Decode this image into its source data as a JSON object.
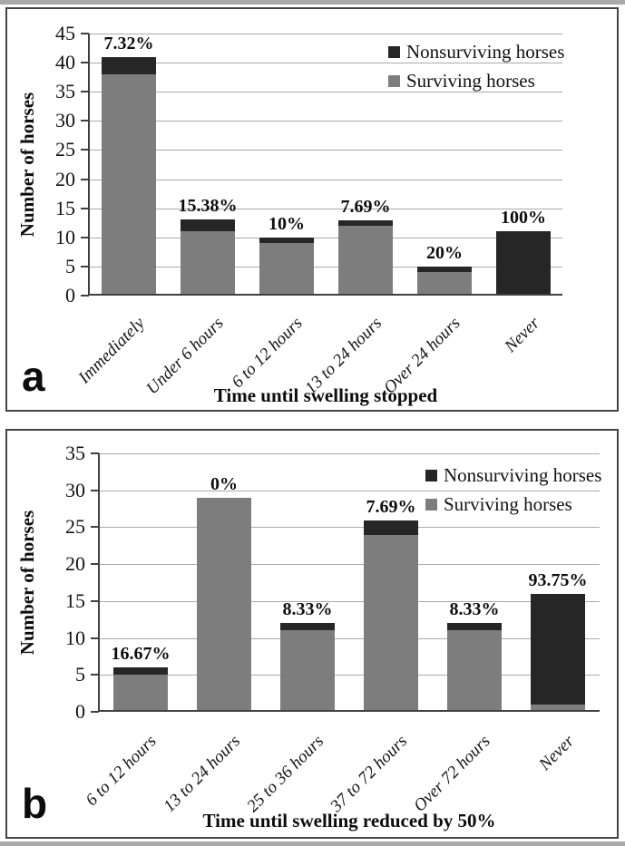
{
  "colors": {
    "surviving_bar": "#7d7d7d",
    "nonsurviving_bar": "#262626",
    "gridline": "#ababab",
    "axis": "#404040",
    "panel_border": "#454545"
  },
  "chart_data": [
    {
      "type": "bar",
      "stacked": true,
      "panel_label": "a",
      "title": "",
      "xlabel": "Time until swelling stopped",
      "ylabel": "Number of horses",
      "ylim": [
        0,
        45
      ],
      "yticks": [
        0,
        5,
        10,
        15,
        20,
        25,
        30,
        35,
        40,
        45
      ],
      "grid": true,
      "legend_position": "top-right",
      "categories": [
        "Immediately",
        "Under 6 hours",
        "6 to 12 hours",
        "13 to 24 hours",
        "Over 24 hours",
        "Never"
      ],
      "series": [
        {
          "name": "Surviving horses",
          "color": "#7d7d7d",
          "values": [
            38,
            11,
            9,
            12,
            4,
            0
          ]
        },
        {
          "name": "Nonsurviving horses",
          "color": "#262626",
          "values": [
            3,
            2,
            1,
            1,
            1,
            11
          ]
        }
      ],
      "totals": [
        41,
        13,
        10,
        13,
        5,
        11
      ],
      "bar_labels": [
        "7.32%",
        "15.38%",
        "10%",
        "7.69%",
        "20%",
        "100%"
      ],
      "legend": [
        {
          "label": "Nonsurviving horses",
          "color": "#262626"
        },
        {
          "label": "Surviving horses",
          "color": "#7d7d7d"
        }
      ]
    },
    {
      "type": "bar",
      "stacked": true,
      "panel_label": "b",
      "title": "",
      "xlabel": "Time until swelling reduced by 50%",
      "ylabel": "Number of horses",
      "ylim": [
        0,
        35
      ],
      "yticks": [
        0,
        5,
        10,
        15,
        20,
        25,
        30,
        35
      ],
      "grid": true,
      "legend_position": "top-right",
      "categories": [
        "6 to 12 hours",
        "13 to 24 hours",
        "25 to 36 hours",
        "37 to 72 hours",
        "Over 72 hours",
        "Never"
      ],
      "series": [
        {
          "name": "Surviving horses",
          "color": "#7d7d7d",
          "values": [
            5,
            29,
            11,
            24,
            11,
            1
          ]
        },
        {
          "name": "Nonsurviving horses",
          "color": "#262626",
          "values": [
            1,
            0,
            1,
            2,
            1,
            15
          ]
        }
      ],
      "totals": [
        6,
        29,
        12,
        26,
        12,
        16
      ],
      "bar_labels": [
        "16.67%",
        "0%",
        "8.33%",
        "7.69%",
        "8.33%",
        "93.75%"
      ],
      "legend": [
        {
          "label": "Nonsurviving horses",
          "color": "#262626"
        },
        {
          "label": "Surviving horses",
          "color": "#7d7d7d"
        }
      ]
    }
  ]
}
